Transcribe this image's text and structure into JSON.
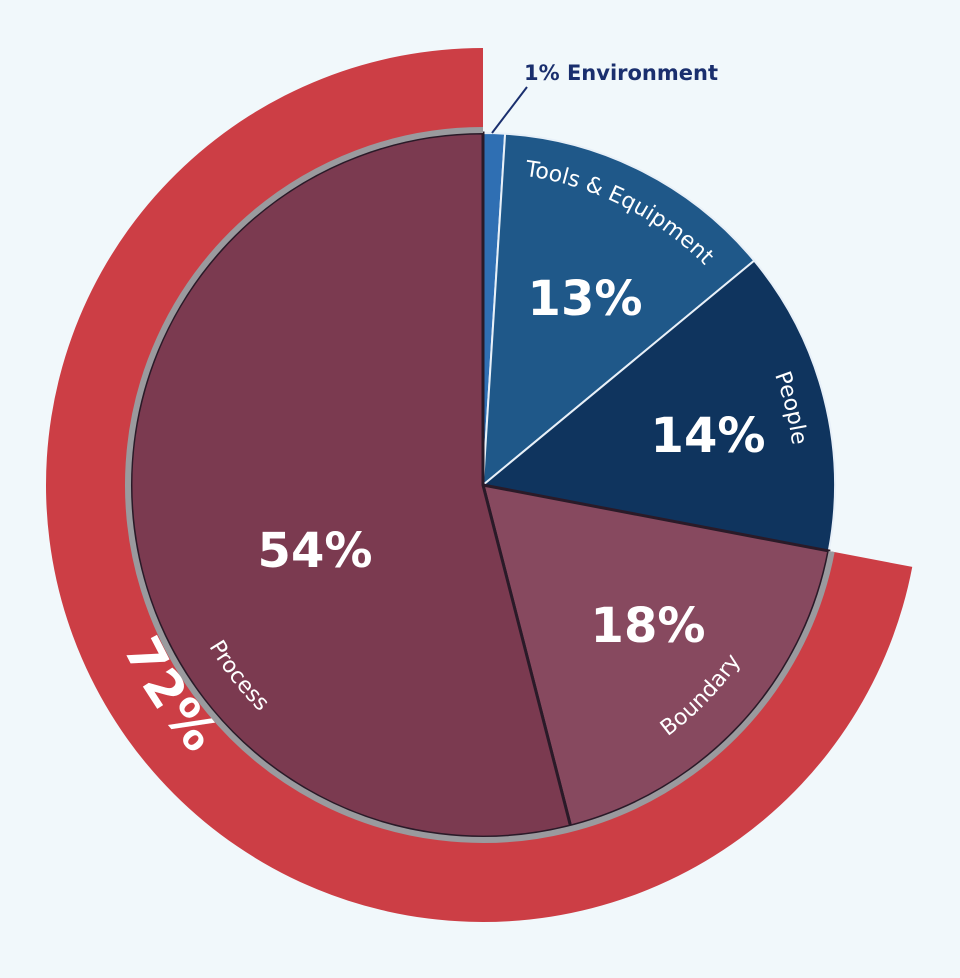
{
  "chart_data": {
    "type": "pie",
    "title": "",
    "slices": [
      {
        "label": "Environment",
        "value": 1,
        "display": "1% Environment",
        "color": "#2f6fb3"
      },
      {
        "label": "Tools & Equipment",
        "value": 13,
        "display": "13%",
        "color": "#1f5889"
      },
      {
        "label": "People",
        "value": 14,
        "display": "14%",
        "color": "#0f345e"
      },
      {
        "label": "Boundary",
        "value": 18,
        "display": "18%",
        "color": "#87495f"
      },
      {
        "label": "Process",
        "value": 54,
        "display": "54%",
        "color": "#7b3a50"
      }
    ],
    "group_ring": {
      "label": "72%",
      "value": 72,
      "members": [
        "Boundary",
        "Process"
      ],
      "color": "#cc3e45"
    },
    "label_color": "#ffffff",
    "callout_color": "#1a2f6e",
    "background": "#f1f8fb"
  }
}
